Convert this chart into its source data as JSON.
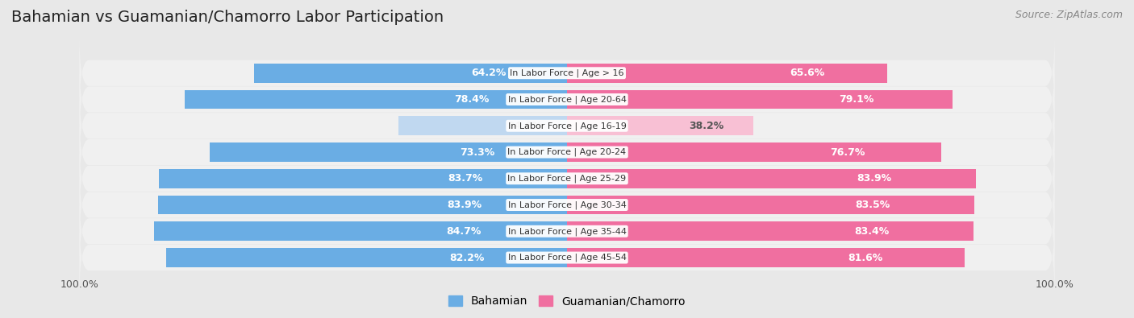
{
  "title": "Bahamian vs Guamanian/Chamorro Labor Participation",
  "source": "Source: ZipAtlas.com",
  "categories": [
    "In Labor Force | Age > 16",
    "In Labor Force | Age 20-64",
    "In Labor Force | Age 16-19",
    "In Labor Force | Age 20-24",
    "In Labor Force | Age 25-29",
    "In Labor Force | Age 30-34",
    "In Labor Force | Age 35-44",
    "In Labor Force | Age 45-54"
  ],
  "bahamian": [
    64.2,
    78.4,
    34.6,
    73.3,
    83.7,
    83.9,
    84.7,
    82.2
  ],
  "guamanian": [
    65.6,
    79.1,
    38.2,
    76.7,
    83.9,
    83.5,
    83.4,
    81.6
  ],
  "bahamian_color": "#6aade4",
  "guamanian_color": "#f06fa0",
  "bahamian_light_color": "#c0d8f0",
  "guamanian_light_color": "#f8c0d4",
  "label_color_white": "#ffffff",
  "label_color_dark": "#555555",
  "bg_color": "#e8e8e8",
  "row_bg": "#f0f0f0",
  "legend_bahamian": "Bahamian",
  "legend_guamanian": "Guamanian/Chamorro",
  "bar_height": 0.72,
  "title_fontsize": 14,
  "source_fontsize": 9,
  "label_fontsize": 9,
  "category_fontsize": 8,
  "axis_fontsize": 9
}
